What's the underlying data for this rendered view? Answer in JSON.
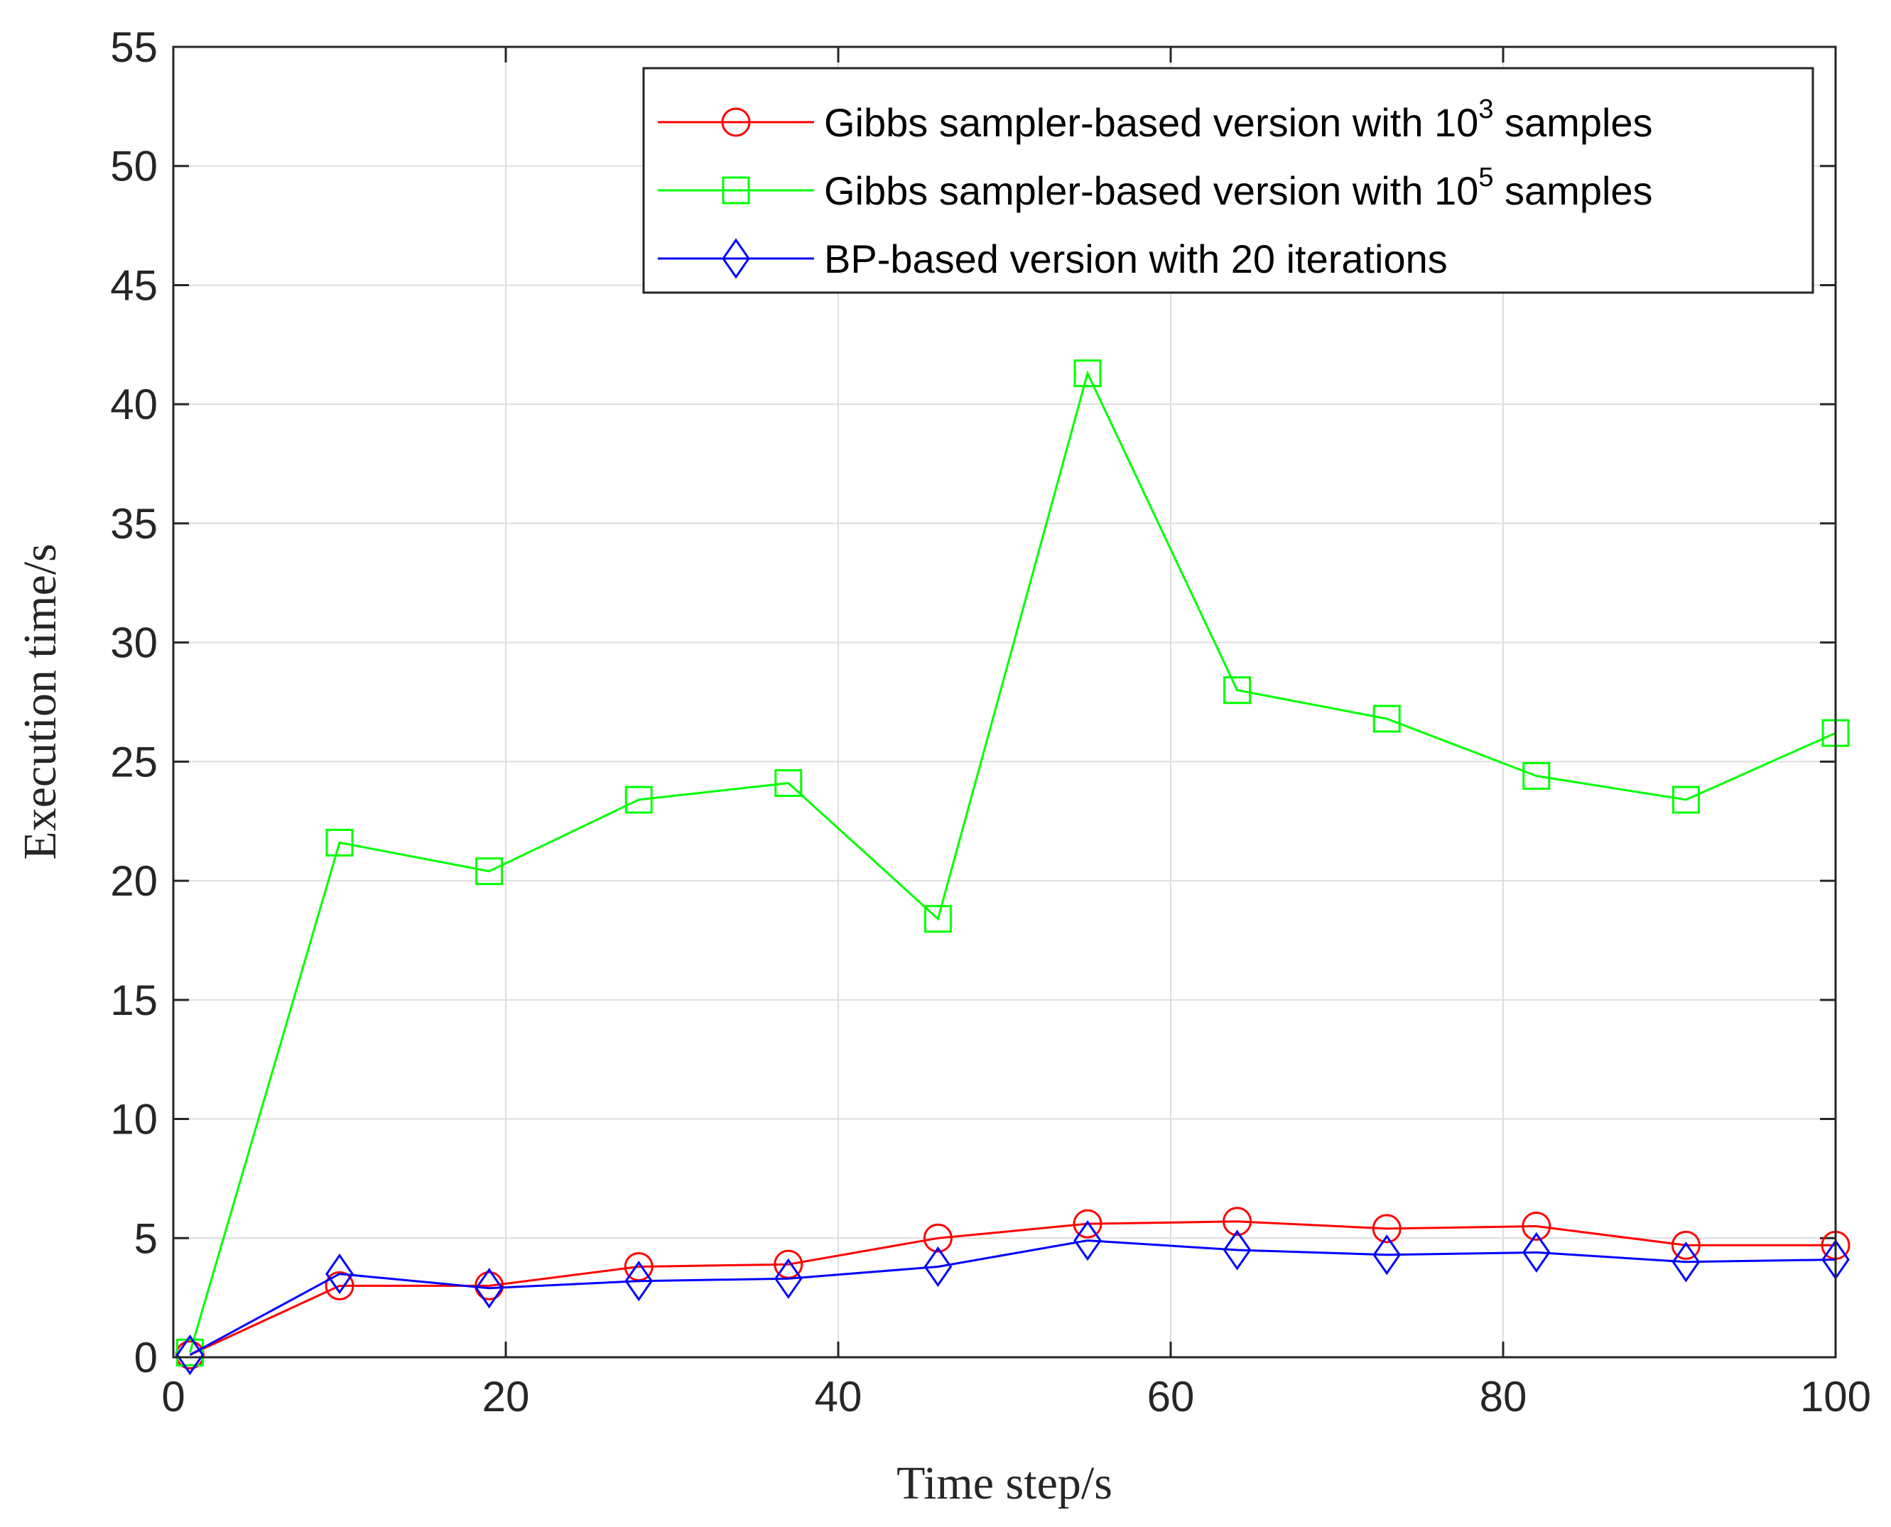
{
  "chart_data": {
    "type": "line",
    "title": "",
    "xlabel": "Time step/s",
    "ylabel": "Execution time/s",
    "xlim": [
      0,
      100
    ],
    "ylim": [
      0,
      55
    ],
    "xticks": [
      0,
      20,
      40,
      60,
      80,
      100
    ],
    "yticks": [
      0,
      5,
      10,
      15,
      20,
      25,
      30,
      35,
      40,
      45,
      50,
      55
    ],
    "grid": true,
    "legend_position": "top-right",
    "x": [
      1,
      10,
      19,
      28,
      37,
      46,
      55,
      64,
      73,
      82,
      91,
      100
    ],
    "series": [
      {
        "name": "Gibbs sampler-based version with 10^3 samples",
        "label_main": "Gibbs sampler-based version with 10",
        "label_sup": "3",
        "label_tail": " samples",
        "color": "#ff0000",
        "marker": "circle",
        "values": [
          0.1,
          3.0,
          3.0,
          3.8,
          3.9,
          5.0,
          5.6,
          5.7,
          5.4,
          5.5,
          4.7,
          4.7
        ]
      },
      {
        "name": "Gibbs sampler-based version with 10^5 samples",
        "label_main": "Gibbs sampler-based version with 10",
        "label_sup": "5",
        "label_tail": " samples",
        "color": "#00ff00",
        "marker": "square",
        "values": [
          0.2,
          21.6,
          20.4,
          23.4,
          24.1,
          18.4,
          41.3,
          28.0,
          26.8,
          24.4,
          23.4,
          26.2
        ]
      },
      {
        "name": "BP-based version with 20 iterations",
        "label_main": "BP-based version with 20 iterations",
        "label_sup": "",
        "label_tail": "",
        "color": "#0000ff",
        "marker": "diamond",
        "values": [
          0.1,
          3.5,
          2.9,
          3.2,
          3.3,
          3.8,
          4.9,
          4.5,
          4.3,
          4.4,
          4.0,
          4.1
        ]
      }
    ]
  }
}
